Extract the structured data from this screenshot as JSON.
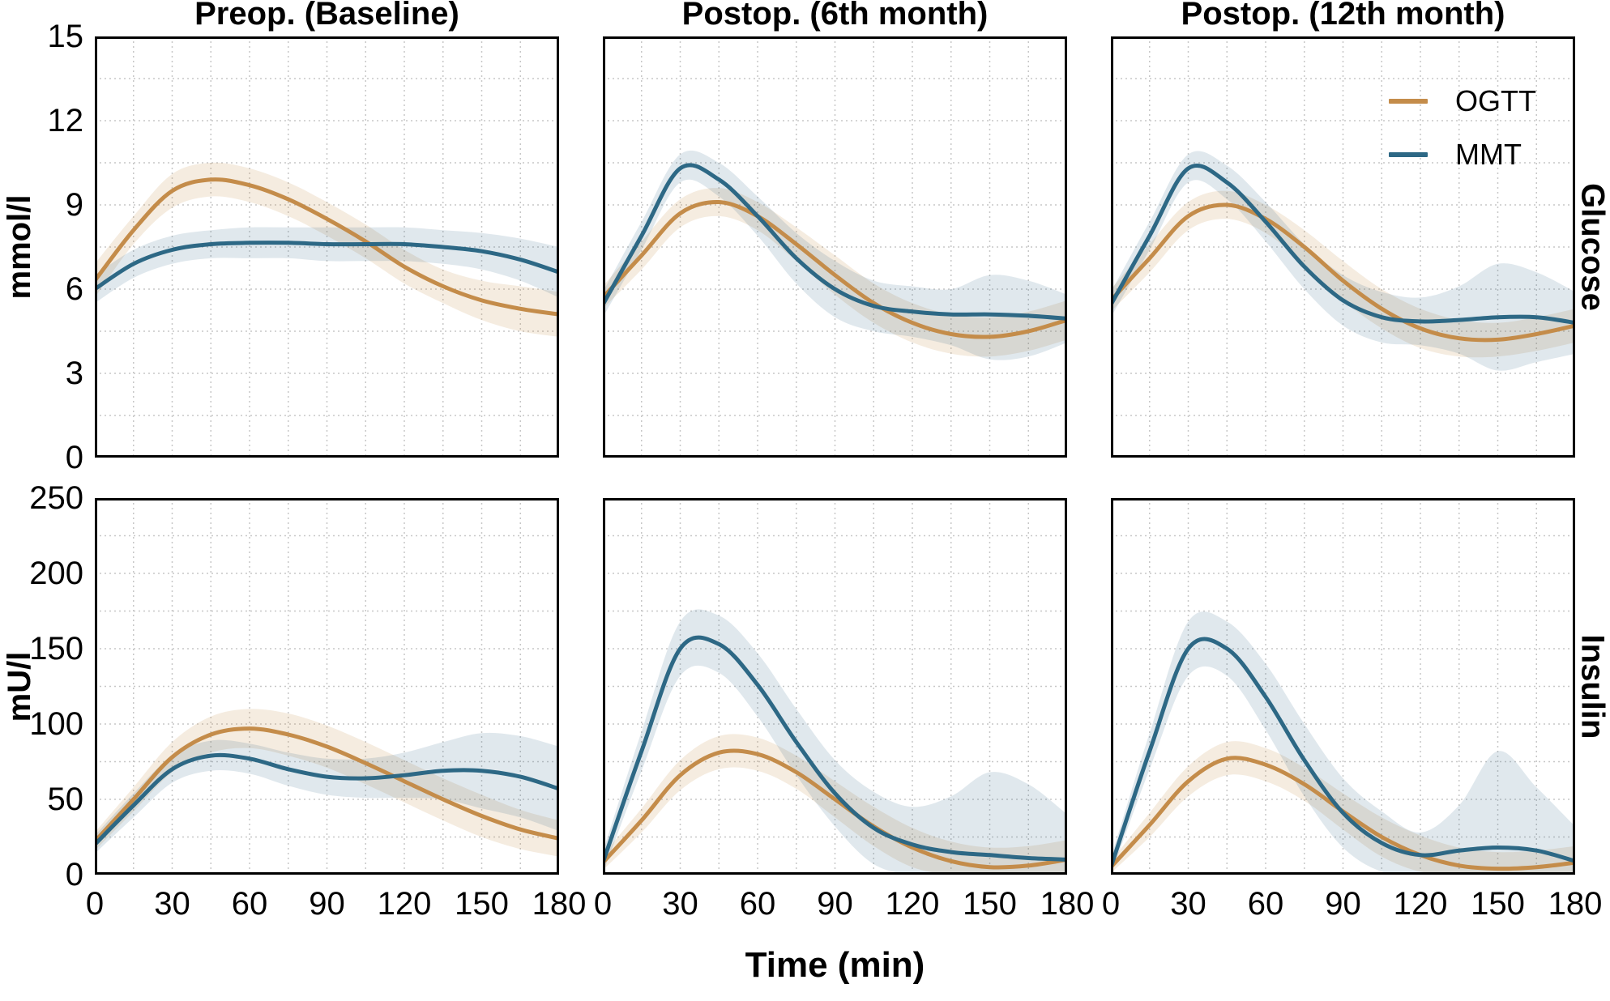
{
  "figure": {
    "col_titles": [
      "Preop. (Baseline)",
      "Postop. (6th month)",
      "Postop. (12th month)"
    ],
    "row_labels_right": [
      "Glucose",
      "Insulin"
    ],
    "y_axis_titles": [
      "mmol/l",
      "mU/l"
    ],
    "x_axis_title": "Time (min)",
    "legend": [
      {
        "label": "OGTT"
      },
      {
        "label": "MMT"
      }
    ],
    "colors": {
      "ogtt_line": "#C48C4A",
      "mmt_line": "#2D6885",
      "ogtt_band": "rgba(196,140,74,0.17)",
      "mmt_band": "rgba(45,104,133,0.15)",
      "grid": "#c7c7c7",
      "spine": "#000000",
      "text": "#000000"
    }
  },
  "chart_data": {
    "type": "line",
    "x_label": "Time (min)",
    "x_ticks": [
      0,
      30,
      60,
      90,
      120,
      150,
      180
    ],
    "xlim": [
      0,
      180
    ],
    "x_grid_step": 15,
    "x_samples": [
      0,
      15,
      30,
      45,
      60,
      75,
      90,
      105,
      120,
      135,
      150,
      165,
      180
    ],
    "legend_position": "top-right of third glucose panel",
    "grid": "dotted",
    "panels": [
      {
        "id": "g-pre",
        "row": "glucose",
        "col": 0,
        "title": "Preop. (Baseline)",
        "y_unit": "mmol/l",
        "ylim": [
          0,
          15
        ],
        "y_ticks": [
          0,
          3,
          6,
          9,
          12,
          15
        ],
        "y_grid_step": 1.5,
        "series": [
          {
            "name": "OGTT",
            "values": [
              6.3,
              8.1,
              9.5,
              9.9,
              9.7,
              9.2,
              8.5,
              7.7,
              6.8,
              6.1,
              5.6,
              5.3,
              5.1
            ],
            "upper": [
              6.9,
              8.6,
              10.1,
              10.5,
              10.3,
              9.8,
              9.1,
              8.3,
              7.4,
              6.7,
              6.3,
              6.1,
              5.9
            ],
            "lower": [
              5.7,
              7.6,
              8.9,
              9.3,
              9.1,
              8.6,
              7.9,
              7.1,
              6.2,
              5.5,
              4.9,
              4.5,
              4.3
            ]
          },
          {
            "name": "MMT",
            "values": [
              6.0,
              6.9,
              7.4,
              7.6,
              7.65,
              7.65,
              7.6,
              7.6,
              7.6,
              7.5,
              7.35,
              7.05,
              6.6
            ],
            "upper": [
              6.5,
              7.4,
              7.9,
              8.1,
              8.2,
              8.2,
              8.2,
              8.2,
              8.2,
              8.1,
              8.0,
              7.8,
              7.5
            ],
            "lower": [
              5.5,
              6.4,
              6.9,
              7.1,
              7.1,
              7.1,
              7.0,
              7.0,
              7.0,
              6.9,
              6.7,
              6.3,
              5.7
            ]
          }
        ]
      },
      {
        "id": "g-6",
        "row": "glucose",
        "col": 1,
        "title": "Postop. (6th month)",
        "y_unit": "mmol/l",
        "ylim": [
          0,
          15
        ],
        "y_ticks": [
          0,
          3,
          6,
          9,
          12,
          15
        ],
        "y_grid_step": 1.5,
        "series": [
          {
            "name": "OGTT",
            "values": [
              5.7,
              7.2,
              8.7,
              9.1,
              8.6,
              7.6,
              6.5,
              5.5,
              4.8,
              4.4,
              4.3,
              4.5,
              4.9
            ],
            "upper": [
              6.1,
              7.7,
              9.2,
              9.6,
              9.1,
              8.2,
              7.2,
              6.2,
              5.5,
              5.1,
              5.0,
              5.2,
              5.6
            ],
            "lower": [
              5.3,
              6.7,
              8.2,
              8.6,
              8.1,
              7.0,
              5.8,
              4.8,
              4.1,
              3.7,
              3.6,
              3.8,
              4.2
            ]
          },
          {
            "name": "MMT",
            "values": [
              5.45,
              7.9,
              10.3,
              9.9,
              8.6,
              7.1,
              6.0,
              5.4,
              5.2,
              5.1,
              5.1,
              5.05,
              4.95
            ],
            "upper": [
              5.9,
              8.4,
              10.8,
              10.5,
              9.3,
              8.0,
              7.0,
              6.3,
              6.1,
              6.0,
              6.5,
              6.3,
              5.8
            ],
            "lower": [
              5.0,
              7.4,
              9.8,
              9.3,
              7.9,
              6.2,
              5.0,
              4.5,
              4.3,
              4.0,
              3.5,
              3.6,
              4.1
            ]
          }
        ]
      },
      {
        "id": "g-12",
        "row": "glucose",
        "col": 2,
        "title": "Postop. (12th month)",
        "y_unit": "mmol/l",
        "ylim": [
          0,
          15
        ],
        "y_ticks": [
          0,
          3,
          6,
          9,
          12,
          15
        ],
        "y_grid_step": 1.5,
        "has_legend": true,
        "series": [
          {
            "name": "OGTT",
            "values": [
              5.6,
              7.1,
              8.6,
              9.0,
              8.5,
              7.5,
              6.3,
              5.3,
              4.6,
              4.25,
              4.2,
              4.4,
              4.7
            ],
            "upper": [
              6.0,
              7.6,
              9.1,
              9.5,
              9.0,
              8.1,
              7.0,
              6.0,
              5.3,
              4.9,
              4.8,
              5.0,
              5.3
            ],
            "lower": [
              5.2,
              6.6,
              8.1,
              8.5,
              8.0,
              6.9,
              5.6,
              4.6,
              3.9,
              3.6,
              3.6,
              3.8,
              4.1
            ]
          },
          {
            "name": "MMT",
            "values": [
              5.45,
              7.9,
              10.3,
              9.8,
              8.4,
              6.8,
              5.6,
              5.0,
              4.85,
              4.9,
              5.0,
              5.0,
              4.8
            ],
            "upper": [
              5.9,
              8.4,
              10.8,
              10.4,
              9.1,
              7.6,
              6.5,
              5.9,
              5.7,
              6.1,
              6.9,
              6.6,
              5.9
            ],
            "lower": [
              5.0,
              7.4,
              9.8,
              9.2,
              7.7,
              6.0,
              4.7,
              4.1,
              4.0,
              3.7,
              3.1,
              3.4,
              3.7
            ]
          }
        ]
      },
      {
        "id": "i-pre",
        "row": "insulin",
        "col": 0,
        "title": "Preop. (Baseline)",
        "y_unit": "mU/l",
        "ylim": [
          0,
          250
        ],
        "y_ticks": [
          0,
          50,
          100,
          150,
          200,
          250
        ],
        "y_grid_step": 25,
        "series": [
          {
            "name": "OGTT",
            "values": [
              22,
              50,
              78,
              93,
              97,
              93,
              85,
              74,
              62,
              50,
              39,
              30,
              24
            ],
            "upper": [
              28,
              58,
              88,
              105,
              110,
              107,
              99,
              88,
              76,
              64,
              53,
              43,
              36
            ],
            "lower": [
              16,
              42,
              68,
              81,
              84,
              79,
              71,
              60,
              48,
              36,
              25,
              17,
              12
            ]
          },
          {
            "name": "MMT",
            "values": [
              20,
              46,
              70,
              79,
              77,
              70,
              65,
              64,
              66,
              69,
              69,
              65,
              57
            ],
            "upper": [
              26,
              54,
              79,
              89,
              87,
              81,
              77,
              77,
              81,
              88,
              94,
              92,
              85
            ],
            "lower": [
              14,
              38,
              61,
              69,
              67,
              59,
              53,
              51,
              51,
              50,
              44,
              38,
              29
            ]
          }
        ]
      },
      {
        "id": "i-6",
        "row": "insulin",
        "col": 1,
        "title": "Postop. (6th month)",
        "y_unit": "mU/l",
        "ylim": [
          0,
          250
        ],
        "y_ticks": [
          0,
          50,
          100,
          150,
          200,
          250
        ],
        "y_grid_step": 25,
        "series": [
          {
            "name": "OGTT",
            "values": [
              8,
              36,
              66,
              81,
              80,
              68,
              50,
              32,
              18,
              9,
              5,
              6,
              10
            ],
            "upper": [
              13,
              44,
              76,
              92,
              91,
              79,
              62,
              45,
              31,
              22,
              18,
              19,
              23
            ],
            "lower": [
              3,
              28,
              56,
              70,
              69,
              57,
              38,
              19,
              5,
              0,
              0,
              0,
              0
            ]
          },
          {
            "name": "MMT",
            "values": [
              8,
              82,
              150,
              153,
              126,
              88,
              54,
              31,
              20,
              15,
              13,
              11,
              10
            ],
            "upper": [
              15,
              95,
              168,
              172,
              147,
              110,
              76,
              55,
              45,
              52,
              68,
              60,
              40
            ],
            "lower": [
              1,
              69,
              132,
              134,
              105,
              66,
              32,
              7,
              0,
              0,
              0,
              0,
              0
            ]
          }
        ]
      },
      {
        "id": "i-12",
        "row": "insulin",
        "col": 2,
        "title": "Postop. (12th month)",
        "y_unit": "mU/l",
        "ylim": [
          0,
          250
        ],
        "y_ticks": [
          0,
          50,
          100,
          150,
          200,
          250
        ],
        "y_grid_step": 25,
        "series": [
          {
            "name": "OGTT",
            "values": [
              5,
              33,
              62,
              77,
              73,
              60,
              42,
              25,
              13,
              6,
              4,
              5,
              8
            ],
            "upper": [
              9,
              41,
              72,
              88,
              84,
              71,
              54,
              38,
              26,
              18,
              15,
              16,
              19
            ],
            "lower": [
              1,
              25,
              52,
              66,
              62,
              49,
              30,
              12,
              2,
              0,
              0,
              0,
              0
            ]
          },
          {
            "name": "MMT",
            "values": [
              5,
              82,
              150,
              150,
              118,
              76,
              41,
              21,
              13,
              16,
              18,
              16,
              9
            ],
            "upper": [
              11,
              94,
              168,
              168,
              140,
              100,
              64,
              42,
              28,
              46,
              82,
              58,
              32
            ],
            "lower": [
              0,
              70,
              132,
              132,
              96,
              52,
              18,
              2,
              0,
              0,
              0,
              0,
              0
            ]
          }
        ]
      }
    ]
  }
}
